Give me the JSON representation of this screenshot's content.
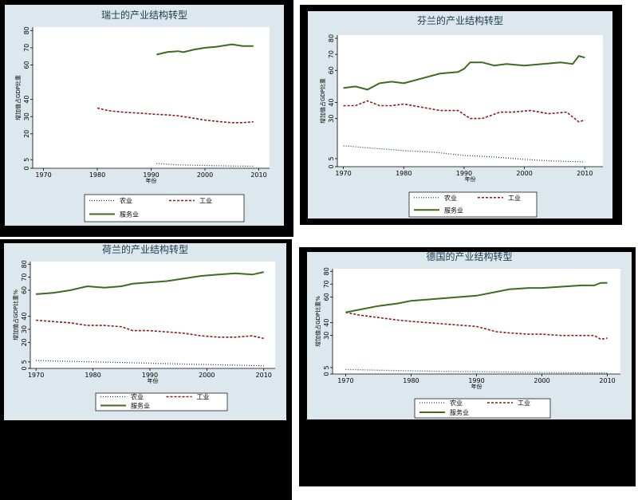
{
  "chart_data": [
    {
      "type": "line",
      "title": "瑞士的产业结构转型",
      "xlabel": "年份",
      "ylabel": "增加值占GDP比重",
      "xlim": [
        1968,
        2012
      ],
      "ylim": [
        0,
        82
      ],
      "xticks": [
        1970,
        1980,
        1990,
        2000,
        2010
      ],
      "yticks": [
        0,
        5,
        20,
        30,
        40,
        60,
        70,
        80
      ],
      "legend": "bottom",
      "series": [
        {
          "name": "农业",
          "color": "#1f3f6f",
          "style": "dot",
          "x": [
            1991,
            1995,
            2000,
            2005,
            2009
          ],
          "y": [
            2.8,
            2.0,
            1.6,
            1.3,
            1.2
          ]
        },
        {
          "name": "工业",
          "color": "#8b1a1a",
          "style": "dash",
          "x": [
            1980,
            1982,
            1985,
            1988,
            1990,
            1993,
            1995,
            1997,
            2000,
            2003,
            2005,
            2007,
            2009
          ],
          "y": [
            35,
            33.5,
            32.5,
            32,
            31.5,
            31,
            30.5,
            29.5,
            28,
            27,
            26.5,
            26.5,
            27
          ]
        },
        {
          "name": "服务业",
          "color": "#3e6b1e",
          "style": "solid",
          "x": [
            1991,
            1993,
            1995,
            1996,
            1998,
            2000,
            2002,
            2005,
            2007,
            2009
          ],
          "y": [
            66,
            67.5,
            68,
            67.5,
            69,
            70,
            70.5,
            72,
            71,
            71
          ]
        }
      ]
    },
    {
      "type": "line",
      "title": "芬兰的产业结构转型",
      "xlabel": "年份",
      "ylabel": "增加值占GDP比重",
      "xlim": [
        1969,
        2013
      ],
      "ylim": [
        0,
        82
      ],
      "xticks": [
        1970,
        1980,
        1990,
        2000,
        2010
      ],
      "yticks": [
        0,
        5,
        30,
        40,
        60,
        70,
        80
      ],
      "legend": "bottom",
      "series": [
        {
          "name": "农业",
          "color": "#1f3f6f",
          "style": "dot",
          "x": [
            1970,
            1975,
            1980,
            1985,
            1990,
            1995,
            2000,
            2005,
            2010
          ],
          "y": [
            13,
            11.5,
            10,
            9,
            7,
            6,
            4.5,
            3.5,
            3
          ]
        },
        {
          "name": "工业",
          "color": "#8b1a1a",
          "style": "dash",
          "x": [
            1970,
            1972,
            1974,
            1976,
            1978,
            1980,
            1983,
            1986,
            1989,
            1991,
            1993,
            1996,
            1998,
            2001,
            2004,
            2007,
            2009,
            2010
          ],
          "y": [
            38,
            38,
            41,
            38,
            38,
            39,
            37,
            35,
            35,
            30,
            30,
            34,
            34,
            35,
            33,
            34,
            28,
            29
          ]
        },
        {
          "name": "服务业",
          "color": "#3e6b1e",
          "style": "solid",
          "x": [
            1970,
            1972,
            1974,
            1976,
            1978,
            1980,
            1983,
            1986,
            1989,
            1990,
            1991,
            1993,
            1995,
            1997,
            2000,
            2003,
            2006,
            2008,
            2009,
            2010
          ],
          "y": [
            49,
            50,
            48,
            52,
            53,
            52,
            55,
            58,
            59,
            61,
            65,
            65,
            63,
            64,
            63,
            64,
            65,
            64,
            69,
            68
          ]
        }
      ]
    },
    {
      "type": "line",
      "title": "荷兰的产业结构转型",
      "xlabel": "年份",
      "ylabel": "增加值占GDP比重%",
      "xlim": [
        1969,
        2012
      ],
      "ylim": [
        0,
        82
      ],
      "xticks": [
        1970,
        1980,
        1990,
        2000,
        2010
      ],
      "yticks": [
        0,
        5,
        20,
        30,
        40,
        60,
        70,
        80
      ],
      "legend": "bottom",
      "series": [
        {
          "name": "农业",
          "color": "#1f3f6f",
          "style": "dot",
          "x": [
            1970,
            1975,
            1980,
            1985,
            1990,
            1995,
            2000,
            2005,
            2010
          ],
          "y": [
            6,
            5.5,
            5,
            4.5,
            4,
            3.5,
            3,
            2.5,
            2
          ]
        },
        {
          "name": "工业",
          "color": "#8b1a1a",
          "style": "dash",
          "x": [
            1970,
            1973,
            1976,
            1979,
            1982,
            1985,
            1987,
            1990,
            1993,
            1996,
            1999,
            2002,
            2005,
            2008,
            2010
          ],
          "y": [
            37,
            36,
            35,
            33,
            33,
            32,
            29,
            29,
            28,
            27,
            25,
            24,
            24,
            25,
            23
          ]
        },
        {
          "name": "服务业",
          "color": "#3e6b1e",
          "style": "solid",
          "x": [
            1970,
            1973,
            1976,
            1979,
            1982,
            1985,
            1987,
            1990,
            1993,
            1996,
            1999,
            2002,
            2005,
            2008,
            2010
          ],
          "y": [
            57,
            58,
            60,
            63,
            62,
            63,
            65,
            66,
            67,
            69,
            71,
            72,
            73,
            72,
            74
          ]
        }
      ]
    },
    {
      "type": "line",
      "title": "德国的产业结构转型",
      "xlabel": "年份",
      "ylabel": "增加值占GDP比重%",
      "xlim": [
        1968,
        2012
      ],
      "ylim": [
        0,
        82
      ],
      "xticks": [
        1970,
        1980,
        1990,
        2000,
        2010
      ],
      "yticks": [
        0,
        5,
        30,
        40,
        60,
        70,
        80
      ],
      "legend": "bottom",
      "series": [
        {
          "name": "农业",
          "color": "#1f3f6f",
          "style": "dot",
          "x": [
            1970,
            1975,
            1980,
            1985,
            1990,
            1995,
            2000,
            2005,
            2010
          ],
          "y": [
            3.5,
            3,
            2.5,
            2,
            1.8,
            1.5,
            1.2,
            1.0,
            0.9
          ]
        },
        {
          "name": "工业",
          "color": "#8b1a1a",
          "style": "dash",
          "x": [
            1970,
            1972,
            1975,
            1978,
            1980,
            1985,
            1990,
            1993,
            1995,
            1998,
            2000,
            2003,
            2006,
            2008,
            2009,
            2010
          ],
          "y": [
            48,
            46,
            44,
            42,
            41,
            39,
            37,
            33,
            32,
            31,
            31,
            30,
            30,
            30,
            27,
            28
          ]
        },
        {
          "name": "服务业",
          "color": "#3e6b1e",
          "style": "solid",
          "x": [
            1970,
            1972,
            1975,
            1978,
            1980,
            1985,
            1990,
            1993,
            1995,
            1998,
            2000,
            2003,
            2006,
            2008,
            2009,
            2010
          ],
          "y": [
            48,
            50,
            53,
            55,
            57,
            59,
            61,
            64,
            66,
            67,
            67,
            68,
            69,
            69,
            71,
            71
          ]
        }
      ]
    }
  ]
}
